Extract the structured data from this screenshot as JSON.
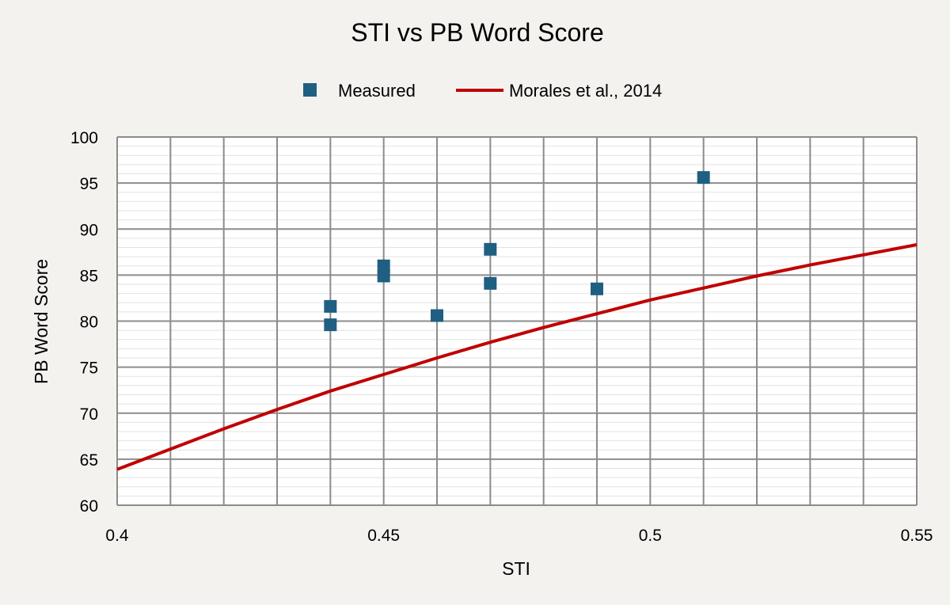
{
  "chart_data": {
    "type": "scatter",
    "title": "STI vs PB Word Score",
    "xlabel": "STI",
    "ylabel": "PB Word Score",
    "xlim": [
      0.4,
      0.55
    ],
    "ylim": [
      60,
      100
    ],
    "x_ticks": [
      "0.4",
      "0.45",
      "0.5",
      "0.55"
    ],
    "y_ticks": [
      "60",
      "65",
      "70",
      "75",
      "80",
      "85",
      "90",
      "95",
      "100"
    ],
    "grid": true,
    "legend_position": "top-center",
    "series": [
      {
        "name": "Measured",
        "kind": "scatter",
        "marker": "square",
        "color": "#1f5f82",
        "points": [
          {
            "x": 0.44,
            "y": 81.6
          },
          {
            "x": 0.44,
            "y": 79.6
          },
          {
            "x": 0.45,
            "y": 86.0
          },
          {
            "x": 0.45,
            "y": 84.9
          },
          {
            "x": 0.46,
            "y": 80.6
          },
          {
            "x": 0.47,
            "y": 87.8
          },
          {
            "x": 0.47,
            "y": 84.1
          },
          {
            "x": 0.49,
            "y": 83.5
          },
          {
            "x": 0.51,
            "y": 95.6
          }
        ]
      },
      {
        "name": "Morales et al., 2014",
        "kind": "line",
        "color": "#c00000",
        "points": [
          {
            "x": 0.4,
            "y": 63.9
          },
          {
            "x": 0.41,
            "y": 66.1
          },
          {
            "x": 0.42,
            "y": 68.3
          },
          {
            "x": 0.43,
            "y": 70.4
          },
          {
            "x": 0.44,
            "y": 72.4
          },
          {
            "x": 0.45,
            "y": 74.2
          },
          {
            "x": 0.46,
            "y": 76.0
          },
          {
            "x": 0.47,
            "y": 77.7
          },
          {
            "x": 0.48,
            "y": 79.3
          },
          {
            "x": 0.49,
            "y": 80.8
          },
          {
            "x": 0.5,
            "y": 82.3
          },
          {
            "x": 0.51,
            "y": 83.6
          },
          {
            "x": 0.52,
            "y": 84.9
          },
          {
            "x": 0.53,
            "y": 86.1
          },
          {
            "x": 0.54,
            "y": 87.2
          },
          {
            "x": 0.55,
            "y": 88.3
          }
        ]
      }
    ]
  }
}
